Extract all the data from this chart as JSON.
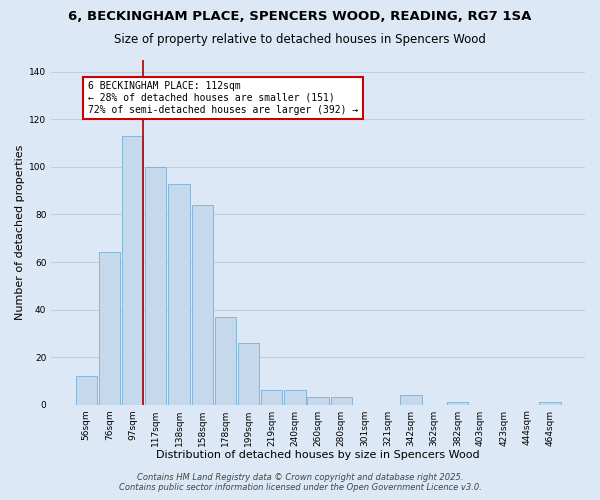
{
  "title": "6, BECKINGHAM PLACE, SPENCERS WOOD, READING, RG7 1SA",
  "subtitle": "Size of property relative to detached houses in Spencers Wood",
  "xlabel": "Distribution of detached houses by size in Spencers Wood",
  "ylabel": "Number of detached properties",
  "bar_labels": [
    "56sqm",
    "76sqm",
    "97sqm",
    "117sqm",
    "138sqm",
    "158sqm",
    "178sqm",
    "199sqm",
    "219sqm",
    "240sqm",
    "260sqm",
    "280sqm",
    "301sqm",
    "321sqm",
    "342sqm",
    "362sqm",
    "382sqm",
    "403sqm",
    "423sqm",
    "444sqm",
    "464sqm"
  ],
  "bar_values": [
    12,
    64,
    113,
    100,
    93,
    84,
    37,
    26,
    6,
    6,
    3,
    3,
    0,
    0,
    4,
    0,
    1,
    0,
    0,
    0,
    1
  ],
  "bar_color": "#c6d9ec",
  "bar_edge_color": "#7aafd4",
  "background_color": "#dce8f5",
  "plot_bg_color": "#dce8f5",
  "ylim": [
    0,
    145
  ],
  "yticks": [
    0,
    20,
    40,
    60,
    80,
    100,
    120,
    140
  ],
  "marker_color": "#aa0000",
  "annotation_title": "6 BECKINGHAM PLACE: 112sqm",
  "annotation_line1": "← 28% of detached houses are smaller (151)",
  "annotation_line2": "72% of semi-detached houses are larger (392) →",
  "annotation_box_color": "#ffffff",
  "annotation_box_edge": "#cc0000",
  "footer_line1": "Contains HM Land Registry data © Crown copyright and database right 2025.",
  "footer_line2": "Contains public sector information licensed under the Open Government Licence v3.0.",
  "grid_color": "#c0cfe0",
  "title_fontsize": 9.5,
  "subtitle_fontsize": 8.5,
  "tick_fontsize": 6.5,
  "label_fontsize": 8,
  "annotation_fontsize": 7,
  "footer_fontsize": 6
}
